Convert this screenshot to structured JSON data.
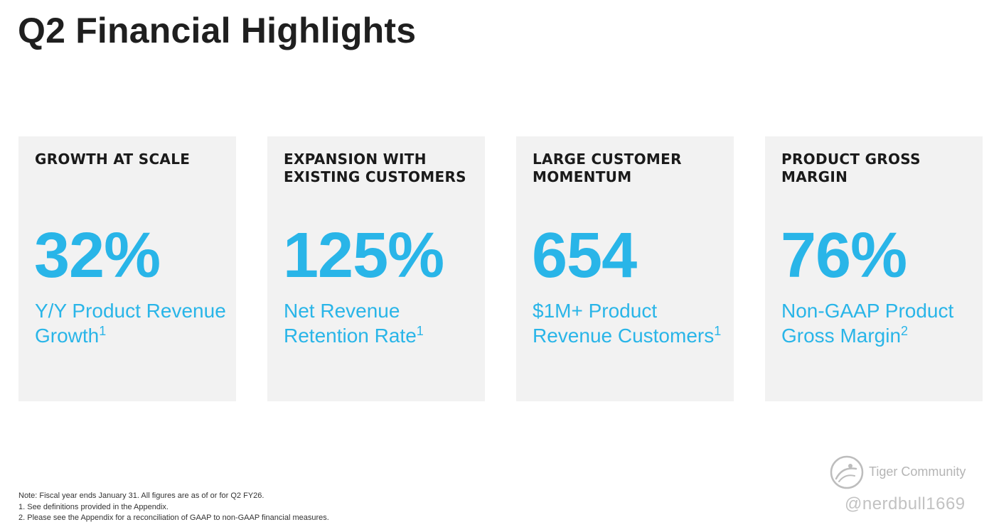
{
  "slide": {
    "title": "Q2 Financial Highlights"
  },
  "cards": [
    {
      "heading": "GROWTH AT SCALE",
      "value": "32%",
      "description": "Y/Y Product Revenue Growth",
      "footnote": "1"
    },
    {
      "heading": "EXPANSION WITH EXISTING CUSTOMERS",
      "value": "125%",
      "description": "Net Revenue Retention Rate",
      "footnote": "1"
    },
    {
      "heading": "LARGE CUSTOMER MOMENTUM",
      "value": "654",
      "description": "$1M+ Product Revenue Customers",
      "footnote": "1"
    },
    {
      "heading": "PRODUCT GROSS MARGIN",
      "value": "76%",
      "description": "Non-GAAP Product Gross Margin",
      "footnote": "2"
    }
  ],
  "notes": [
    "Note: Fiscal year ends January 31. All figures are as of or for Q2 FY26.",
    "1. See definitions provided in the Appendix.",
    "2. Please see the Appendix for a reconciliation of GAAP to non-GAAP financial measures."
  ],
  "watermark": {
    "brand": "Tiger Community",
    "handle": "@nerdbull1669",
    "icon": "tiger-community-logo"
  },
  "colors": {
    "accent": "#29b5e8",
    "card_background": "#f2f2f2",
    "title_text": "#1f1f1f"
  }
}
